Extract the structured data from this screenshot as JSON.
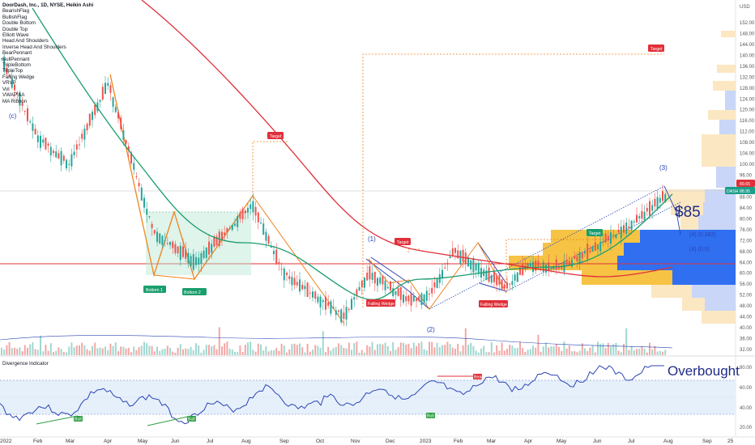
{
  "header": {
    "lines": [
      "DoorDash, Inc., 1D, NYSE, Heikin Ashi",
      "BearishFlag",
      "BullishFlag",
      "Double Bottom",
      "Double Top",
      "Elliott Wave",
      "Head And Shoulders",
      "Inverse Head And Shoulders",
      "BearPennant",
      "BullPennant",
      "TripleBottom",
      "TripleTop",
      "Falling Wedge",
      "VRVP",
      "Vol",
      "VWAP AA",
      "MA Ribbon"
    ]
  },
  "price_axis": {
    "currency": "USD",
    "ticks": [
      "152.00",
      "148.00",
      "144.00",
      "140.00",
      "136.00",
      "132.00",
      "128.00",
      "124.00",
      "120.00",
      "116.00",
      "112.00",
      "108.00",
      "104.00",
      "100.00",
      "96.00",
      "92.00",
      "88.00",
      "84.00",
      "80.00",
      "76.00",
      "72.00",
      "68.00",
      "64.00",
      "60.00",
      "56.00",
      "52.00",
      "48.00",
      "44.00",
      "40.00",
      "36.00",
      "32.00"
    ],
    "price_badge": "89.65",
    "ticker_badge": "DASH",
    "ticker_price": "88.95"
  },
  "indicator_axis": {
    "ticks": [
      "80.00",
      "60.00",
      "40.00",
      "20.00"
    ],
    "title": "Divergence Indicator"
  },
  "time_axis": [
    "2022",
    "Feb",
    "Mar",
    "Apr",
    "May",
    "Jun",
    "Jul",
    "Aug",
    "Sep",
    "Oct",
    "Nov",
    "Dec",
    "2023",
    "Feb",
    "Mar",
    "Apr",
    "May",
    "Jun",
    "Jul",
    "Aug",
    "Sep",
    "25"
  ],
  "annotations": {
    "bottom1": "Bottom 1",
    "bottom2": "Bottom 2",
    "target1": "Target",
    "target2": "Target",
    "target3": "Target",
    "target4": "Target",
    "wedge1": "Falling Wedge",
    "wedge2": "Falling Wedge",
    "wave_c": "(c)",
    "wave_1": "(1)",
    "wave_2": "(2)",
    "wave_3": "(3)",
    "fib1": "(4) (0.382)",
    "fib2": "(4) (0.5)",
    "price_note": "$85",
    "overbought": "Overbought",
    "bull1": "Bull",
    "bull2": "Bull",
    "bull3": "Bull",
    "bear1": "Bear"
  },
  "colors": {
    "up": "#26a69a",
    "down": "#ef5350",
    "ma_green": "#1a9e6e",
    "ma_red": "#e0303a",
    "orange": "#f0831e",
    "blue_line": "#2b45b3",
    "vp_yellow": "#f6c344",
    "vp_blue": "#2f6ff0"
  },
  "chart_data": {
    "type": "candlestick",
    "title": "DoorDash, Inc., 1D, NYSE, Heikin Ashi",
    "series": [
      {
        "name": "Close (approx.)",
        "x": [
          "2022-01",
          "2022-02",
          "2022-03",
          "2022-04",
          "2022-05",
          "2022-06",
          "2022-07",
          "2022-08",
          "2022-09",
          "2022-10",
          "2022-11",
          "2022-12",
          "2023-01",
          "2023-02",
          "2023-03",
          "2023-04",
          "2023-05",
          "2023-06",
          "2023-07",
          "2023-08"
        ],
        "values": [
          140,
          110,
          100,
          130,
          75,
          64,
          70,
          85,
          60,
          44,
          60,
          50,
          52,
          68,
          55,
          63,
          62,
          70,
          78,
          88
        ]
      }
    ],
    "ylim": [
      32,
      152
    ]
  }
}
